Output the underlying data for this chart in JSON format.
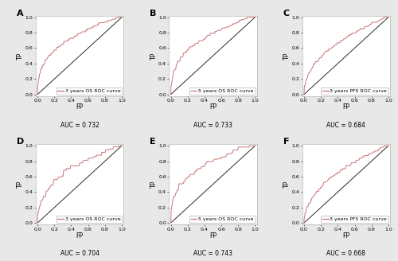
{
  "panels": [
    {
      "label": "A",
      "legend": "3 years OS ROC curve",
      "auc": "AUC = 0.732",
      "seed": 101
    },
    {
      "label": "B",
      "legend": "5 years OS ROC curve",
      "auc": "AUC = 0.733",
      "seed": 202
    },
    {
      "label": "C",
      "legend": "3 years PFS ROC curve",
      "auc": "AUC = 0.684",
      "seed": 303
    },
    {
      "label": "D",
      "legend": "3 years OS ROC curve",
      "auc": "AUC = 0.704",
      "seed": 404
    },
    {
      "label": "E",
      "legend": "5 years OS ROC curve",
      "auc": "AUC = 0.743",
      "seed": 505
    },
    {
      "label": "F",
      "legend": "3 years PFS ROC curve",
      "auc": "AUC = 0.668",
      "seed": 606
    }
  ],
  "roc_color": "#cd8080",
  "diag_color": "#2a2a2a",
  "bg_color": "#e8e8e8",
  "plot_bg": "#ffffff",
  "axis_label_size": 5.5,
  "tick_label_size": 4.5,
  "legend_size": 4.5,
  "auc_label_size": 5.5,
  "panel_label_size": 8,
  "xlabel": "FP",
  "ylabel": "TP",
  "noise_levels": [
    0.014,
    0.016,
    0.013,
    0.022,
    0.018,
    0.015
  ],
  "n_points": [
    280,
    280,
    280,
    180,
    260,
    280
  ]
}
